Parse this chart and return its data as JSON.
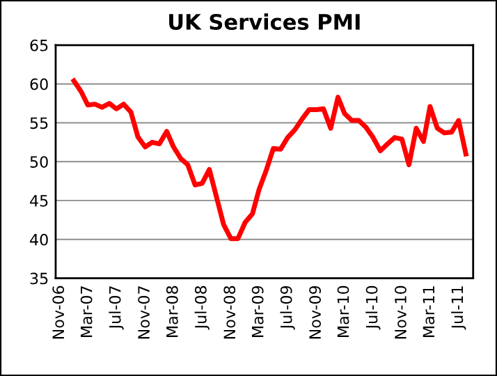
{
  "chart_data": {
    "type": "line",
    "title": "UK Services PMI",
    "x": [
      "2007-01",
      "2007-02",
      "2007-03",
      "2007-04",
      "2007-05",
      "2007-06",
      "2007-07",
      "2007-08",
      "2007-09",
      "2007-10",
      "2007-11",
      "2007-12",
      "2008-01",
      "2008-02",
      "2008-03",
      "2008-04",
      "2008-05",
      "2008-06",
      "2008-07",
      "2008-08",
      "2008-09",
      "2008-10",
      "2008-11",
      "2008-12",
      "2009-01",
      "2009-02",
      "2009-03",
      "2009-04",
      "2009-05",
      "2009-06",
      "2009-07",
      "2009-08",
      "2009-09",
      "2009-10",
      "2009-11",
      "2009-12",
      "2010-01",
      "2010-02",
      "2010-03",
      "2010-04",
      "2010-05",
      "2010-06",
      "2010-07",
      "2010-08",
      "2010-09",
      "2010-10",
      "2010-11",
      "2010-12",
      "2011-01",
      "2011-02",
      "2011-03",
      "2011-04",
      "2011-05",
      "2011-06",
      "2011-07",
      "2011-08"
    ],
    "series": [
      {
        "color": "#ff0000",
        "values": [
          60.4,
          59.0,
          57.3,
          57.4,
          57.0,
          57.5,
          56.8,
          57.4,
          56.4,
          53.2,
          51.9,
          52.5,
          52.3,
          53.9,
          51.9,
          50.4,
          49.6,
          47.0,
          47.2,
          49.0,
          45.4,
          41.9,
          40.1,
          40.1,
          42.2,
          43.3,
          46.4,
          48.9,
          51.7,
          51.6,
          53.1,
          54.1,
          55.5,
          56.7,
          56.7,
          56.8,
          54.3,
          58.3,
          56.2,
          55.3,
          55.3,
          54.4,
          53.1,
          51.4,
          52.3,
          53.1,
          52.9,
          49.6,
          54.3,
          52.6,
          57.1,
          54.3,
          53.7,
          53.8,
          55.3,
          51.0
        ]
      }
    ],
    "xlim": [
      "2006-10-15",
      "2011-09-01"
    ],
    "xticks": [
      {
        "value": "2006-11",
        "label": "Nov-06"
      },
      {
        "value": "2007-03",
        "label": "Mar-07"
      },
      {
        "value": "2007-07",
        "label": "Jul-07"
      },
      {
        "value": "2007-11",
        "label": "Nov-07"
      },
      {
        "value": "2008-03",
        "label": "Mar-08"
      },
      {
        "value": "2008-07",
        "label": "Jul-08"
      },
      {
        "value": "2008-11",
        "label": "Nov-08"
      },
      {
        "value": "2009-03",
        "label": "Mar-09"
      },
      {
        "value": "2009-07",
        "label": "Jul-09"
      },
      {
        "value": "2009-11",
        "label": "Nov-09"
      },
      {
        "value": "2010-03",
        "label": "Mar-10"
      },
      {
        "value": "2010-07",
        "label": "Jul-10"
      },
      {
        "value": "2010-11",
        "label": "Nov-10"
      },
      {
        "value": "2011-03",
        "label": "Mar-11"
      },
      {
        "value": "2011-07",
        "label": "Jul-11"
      }
    ],
    "ylim": [
      35,
      65
    ],
    "yticks": [
      35,
      40,
      45,
      50,
      55,
      60,
      65
    ],
    "grid": "y",
    "line_style": "solid",
    "marker": "none"
  }
}
